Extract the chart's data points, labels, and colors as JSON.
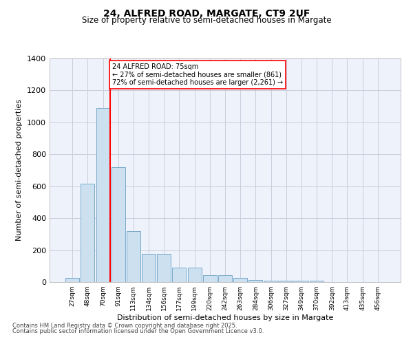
{
  "title_line1": "24, ALFRED ROAD, MARGATE, CT9 2UF",
  "title_line2": "Size of property relative to semi-detached houses in Margate",
  "xlabel": "Distribution of semi-detached houses by size in Margate",
  "ylabel": "Number of semi-detached properties",
  "categories": [
    "27sqm",
    "48sqm",
    "70sqm",
    "91sqm",
    "113sqm",
    "134sqm",
    "156sqm",
    "177sqm",
    "199sqm",
    "220sqm",
    "242sqm",
    "263sqm",
    "284sqm",
    "306sqm",
    "327sqm",
    "349sqm",
    "370sqm",
    "392sqm",
    "413sqm",
    "435sqm",
    "456sqm"
  ],
  "values": [
    25,
    615,
    1090,
    720,
    320,
    175,
    175,
    90,
    90,
    45,
    45,
    25,
    15,
    10,
    10,
    10,
    10,
    0,
    0,
    0,
    0
  ],
  "bar_color": "#cce0f0",
  "bar_edge_color": "#7aabcc",
  "grid_color": "#ccccdd",
  "background_color": "#eef2fb",
  "annotation_box_text": "24 ALFRED ROAD: 75sqm\n← 27% of semi-detached houses are smaller (861)\n72% of semi-detached houses are larger (2,261) →",
  "red_line_index": 2,
  "ylim": [
    0,
    1400
  ],
  "yticks": [
    0,
    200,
    400,
    600,
    800,
    1000,
    1200,
    1400
  ],
  "footnote1": "Contains HM Land Registry data © Crown copyright and database right 2025.",
  "footnote2": "Contains public sector information licensed under the Open Government Licence v3.0."
}
